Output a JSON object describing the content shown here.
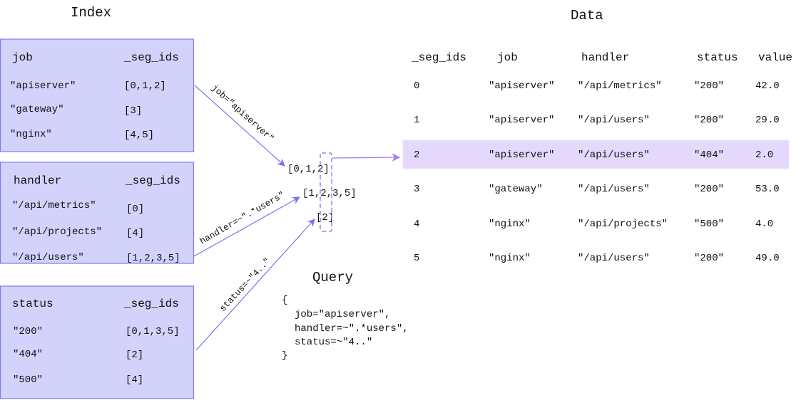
{
  "index": {
    "title": "Index",
    "tables": [
      {
        "label": "job",
        "seg_header": "_seg_ids",
        "rows": [
          {
            "value": "\"apiserver\"",
            "ids": "[0,1,2]"
          },
          {
            "value": "\"gateway\"",
            "ids": "[3]"
          },
          {
            "value": "\"nginx\"",
            "ids": "[4,5]"
          }
        ]
      },
      {
        "label": "handler",
        "seg_header": "_seg_ids",
        "rows": [
          {
            "value": "\"/api/metrics\"",
            "ids": "[0]"
          },
          {
            "value": "\"/api/projects\"",
            "ids": "[4]"
          },
          {
            "value": "\"/api/users\"",
            "ids": "[1,2,3,5]"
          }
        ]
      },
      {
        "label": "status",
        "seg_header": "_seg_ids",
        "rows": [
          {
            "value": "\"200\"",
            "ids": "[0,1,3,5]"
          },
          {
            "value": "\"404\"",
            "ids": "[2]"
          },
          {
            "value": "\"500\"",
            "ids": "[4]"
          }
        ]
      }
    ]
  },
  "matches": {
    "job_label": "job=\"apiserver\"",
    "handler_label": "handler=~\".*users\"",
    "status_label": "status=~\"4..\"",
    "job_ids": "[0,1,2]",
    "handler_ids": "[1,2,3,5]",
    "status_ids": "[2]"
  },
  "query": {
    "title": "Query",
    "lines": [
      "{",
      "job=\"apiserver\",",
      "handler=~\".*users\",",
      "status=~\"4..\"",
      "}"
    ]
  },
  "data": {
    "title": "Data",
    "columns": [
      "_seg_ids",
      "job",
      "handler",
      "status",
      "value"
    ],
    "highlighted_row": 2,
    "rows": [
      [
        "0",
        "\"apiserver\"",
        "\"/api/metrics\"",
        "\"200\"",
        "42.0"
      ],
      [
        "1",
        "\"apiserver\"",
        "\"/api/users\"",
        "\"200\"",
        "29.0"
      ],
      [
        "2",
        "\"apiserver\"",
        "\"/api/users\"",
        "\"404\"",
        "2.0"
      ],
      [
        "3",
        "\"gateway\"",
        "\"/api/users\"",
        "\"200\"",
        "53.0"
      ],
      [
        "4",
        "\"nginx\"",
        "\"/api/projects\"",
        "\"500\"",
        "4.0"
      ],
      [
        "5",
        "\"nginx\"",
        "\"/api/users\"",
        "\"200\"",
        "49.0"
      ]
    ]
  },
  "colors": {
    "box_fill": "#d2d2fb",
    "box_border": "#7b7bf0",
    "arrow": "#7474f2",
    "highlight": "#e4d8fc",
    "dashed": "#a57cf2"
  }
}
